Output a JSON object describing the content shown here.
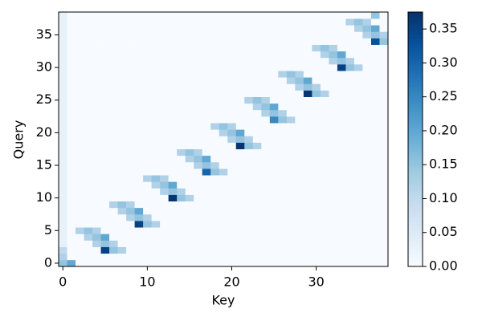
{
  "chart_data": {
    "type": "heatmap",
    "x_label": "Key",
    "y_label": "Query",
    "cmap": "Blues",
    "xlim": [
      -0.5,
      38.5
    ],
    "ylim": [
      -0.5,
      38.5
    ],
    "xticks": [
      0,
      10,
      20,
      30
    ],
    "yticks": [
      0,
      5,
      10,
      15,
      20,
      25,
      30,
      35
    ],
    "clim": [
      0,
      0.375
    ],
    "cticks": [
      {
        "value": 0,
        "label": "0.00"
      },
      {
        "value": 0.05,
        "label": "0.05"
      },
      {
        "value": 0.1,
        "label": "0.10"
      },
      {
        "value": 0.15,
        "label": "0.15"
      },
      {
        "value": 0.2,
        "label": "0.20"
      },
      {
        "value": 0.25,
        "label": "0.25"
      },
      {
        "value": 0.3,
        "label": "0.30"
      },
      {
        "value": 0.35,
        "label": "0.35"
      }
    ],
    "z": [
      [
        0.15,
        0.2,
        0,
        0,
        0,
        0,
        0,
        0,
        0,
        0,
        0,
        0,
        0,
        0,
        0,
        0,
        0,
        0,
        0,
        0,
        0,
        0,
        0,
        0,
        0,
        0,
        0,
        0,
        0,
        0,
        0,
        0,
        0,
        0,
        0,
        0,
        0,
        0,
        0
      ],
      [
        0.12,
        0,
        0,
        0,
        0,
        0,
        0,
        0,
        0,
        0,
        0,
        0,
        0,
        0,
        0,
        0,
        0,
        0,
        0,
        0,
        0,
        0,
        0,
        0,
        0,
        0,
        0,
        0,
        0,
        0,
        0,
        0,
        0,
        0,
        0,
        0,
        0,
        0,
        0
      ],
      [
        0.1,
        0,
        0,
        0,
        0,
        0.35,
        0.15,
        0.12,
        0,
        0,
        0,
        0,
        0,
        0,
        0,
        0,
        0,
        0,
        0,
        0,
        0,
        0,
        0,
        0,
        0,
        0,
        0,
        0,
        0,
        0,
        0,
        0,
        0,
        0,
        0,
        0,
        0,
        0,
        0
      ],
      [
        0.03,
        0,
        0,
        0,
        0.12,
        0.15,
        0.12,
        0,
        0,
        0,
        0,
        0,
        0,
        0,
        0,
        0,
        0,
        0,
        0,
        0,
        0,
        0,
        0,
        0,
        0,
        0,
        0,
        0,
        0,
        0,
        0,
        0,
        0,
        0,
        0,
        0,
        0,
        0,
        0
      ],
      [
        0.03,
        0,
        0,
        0.12,
        0.15,
        0.2,
        0,
        0,
        0,
        0,
        0,
        0,
        0,
        0,
        0,
        0,
        0,
        0,
        0,
        0,
        0,
        0,
        0,
        0,
        0,
        0,
        0,
        0,
        0,
        0,
        0,
        0,
        0,
        0,
        0,
        0,
        0,
        0,
        0
      ],
      [
        0.03,
        0,
        0.12,
        0.15,
        0.12,
        0,
        0,
        0,
        0,
        0,
        0,
        0,
        0,
        0,
        0,
        0,
        0,
        0,
        0,
        0,
        0,
        0,
        0,
        0,
        0,
        0,
        0,
        0,
        0,
        0,
        0,
        0,
        0,
        0,
        0,
        0,
        0,
        0,
        0
      ],
      [
        0.03,
        0,
        0,
        0,
        0,
        0,
        0,
        0,
        0,
        0.35,
        0.15,
        0.12,
        0,
        0,
        0,
        0,
        0,
        0,
        0,
        0,
        0,
        0,
        0,
        0,
        0,
        0,
        0,
        0,
        0,
        0,
        0,
        0,
        0,
        0,
        0,
        0,
        0,
        0,
        0
      ],
      [
        0.03,
        0,
        0,
        0,
        0,
        0,
        0,
        0,
        0.12,
        0.15,
        0.12,
        0,
        0,
        0,
        0,
        0,
        0,
        0,
        0,
        0,
        0,
        0,
        0,
        0,
        0,
        0,
        0,
        0,
        0,
        0,
        0,
        0,
        0,
        0,
        0,
        0,
        0,
        0,
        0
      ],
      [
        0.03,
        0,
        0,
        0,
        0,
        0,
        0,
        0.12,
        0.15,
        0.2,
        0,
        0,
        0,
        0,
        0,
        0,
        0,
        0,
        0,
        0,
        0,
        0,
        0,
        0,
        0,
        0,
        0,
        0,
        0,
        0,
        0,
        0,
        0,
        0,
        0,
        0,
        0,
        0,
        0
      ],
      [
        0.03,
        0,
        0,
        0,
        0,
        0,
        0.12,
        0.15,
        0.12,
        0,
        0,
        0,
        0,
        0,
        0,
        0,
        0,
        0,
        0,
        0,
        0,
        0,
        0,
        0,
        0,
        0,
        0,
        0,
        0,
        0,
        0,
        0,
        0,
        0,
        0,
        0,
        0,
        0,
        0
      ],
      [
        0.03,
        0,
        0,
        0,
        0,
        0,
        0,
        0,
        0,
        0,
        0,
        0,
        0,
        0.37,
        0.15,
        0.12,
        0,
        0,
        0,
        0,
        0,
        0,
        0,
        0,
        0,
        0,
        0,
        0,
        0,
        0,
        0,
        0,
        0,
        0,
        0,
        0,
        0,
        0,
        0
      ],
      [
        0.03,
        0,
        0,
        0,
        0,
        0,
        0,
        0,
        0,
        0,
        0,
        0,
        0.12,
        0.15,
        0.12,
        0,
        0,
        0,
        0,
        0,
        0,
        0,
        0,
        0,
        0,
        0,
        0,
        0,
        0,
        0,
        0,
        0,
        0,
        0,
        0,
        0,
        0,
        0,
        0
      ],
      [
        0.03,
        0,
        0,
        0,
        0,
        0,
        0,
        0,
        0,
        0,
        0,
        0.12,
        0.15,
        0.2,
        0,
        0,
        0,
        0,
        0,
        0,
        0,
        0,
        0,
        0,
        0,
        0,
        0,
        0,
        0,
        0,
        0,
        0,
        0,
        0,
        0,
        0,
        0,
        0,
        0
      ],
      [
        0.03,
        0,
        0,
        0,
        0,
        0,
        0,
        0,
        0,
        0,
        0.12,
        0.15,
        0.12,
        0,
        0,
        0,
        0,
        0,
        0,
        0,
        0,
        0,
        0,
        0,
        0,
        0,
        0,
        0,
        0,
        0,
        0,
        0,
        0,
        0,
        0,
        0,
        0,
        0,
        0
      ],
      [
        0.03,
        0,
        0,
        0,
        0,
        0,
        0,
        0,
        0,
        0,
        0,
        0,
        0,
        0,
        0,
        0,
        0,
        0.3,
        0.15,
        0.12,
        0,
        0,
        0,
        0,
        0,
        0,
        0,
        0,
        0,
        0,
        0,
        0,
        0,
        0,
        0,
        0,
        0,
        0,
        0
      ],
      [
        0.03,
        0,
        0,
        0,
        0,
        0,
        0,
        0,
        0,
        0,
        0,
        0,
        0,
        0,
        0,
        0,
        0.12,
        0.15,
        0.12,
        0,
        0,
        0,
        0,
        0,
        0,
        0,
        0,
        0,
        0,
        0,
        0,
        0,
        0,
        0,
        0,
        0,
        0,
        0,
        0
      ],
      [
        0.03,
        0,
        0,
        0,
        0,
        0,
        0,
        0,
        0,
        0,
        0,
        0,
        0,
        0,
        0,
        0.12,
        0.15,
        0.2,
        0,
        0,
        0,
        0,
        0,
        0,
        0,
        0,
        0,
        0,
        0,
        0,
        0,
        0,
        0,
        0,
        0,
        0,
        0,
        0,
        0
      ],
      [
        0.03,
        0,
        0,
        0,
        0,
        0,
        0,
        0,
        0,
        0,
        0,
        0,
        0,
        0,
        0.12,
        0.15,
        0.12,
        0,
        0,
        0,
        0,
        0,
        0,
        0,
        0,
        0,
        0,
        0,
        0,
        0,
        0,
        0,
        0,
        0,
        0,
        0,
        0,
        0,
        0
      ],
      [
        0.03,
        0,
        0,
        0,
        0,
        0,
        0,
        0,
        0,
        0,
        0,
        0,
        0,
        0,
        0,
        0,
        0,
        0,
        0,
        0,
        0,
        0.37,
        0.15,
        0.12,
        0,
        0,
        0,
        0,
        0,
        0,
        0,
        0,
        0,
        0,
        0,
        0,
        0,
        0,
        0
      ],
      [
        0.03,
        0,
        0,
        0,
        0,
        0,
        0,
        0,
        0,
        0,
        0,
        0,
        0,
        0,
        0,
        0,
        0,
        0,
        0,
        0,
        0.12,
        0.15,
        0.12,
        0,
        0,
        0,
        0,
        0,
        0,
        0,
        0,
        0,
        0,
        0,
        0,
        0,
        0,
        0,
        0
      ],
      [
        0.03,
        0,
        0,
        0,
        0,
        0,
        0,
        0,
        0,
        0,
        0,
        0,
        0,
        0,
        0,
        0,
        0,
        0,
        0,
        0.12,
        0.15,
        0.2,
        0,
        0,
        0,
        0,
        0,
        0,
        0,
        0,
        0,
        0,
        0,
        0,
        0,
        0,
        0,
        0,
        0
      ],
      [
        0.03,
        0,
        0,
        0,
        0,
        0,
        0,
        0,
        0,
        0,
        0,
        0,
        0,
        0,
        0,
        0,
        0,
        0,
        0.12,
        0.15,
        0.12,
        0,
        0,
        0,
        0,
        0,
        0,
        0,
        0,
        0,
        0,
        0,
        0,
        0,
        0,
        0,
        0,
        0,
        0
      ],
      [
        0.03,
        0,
        0,
        0,
        0,
        0,
        0,
        0,
        0,
        0,
        0,
        0,
        0,
        0,
        0,
        0,
        0,
        0,
        0,
        0,
        0,
        0,
        0,
        0,
        0,
        0.25,
        0.15,
        0.12,
        0,
        0,
        0,
        0,
        0,
        0,
        0,
        0,
        0,
        0,
        0
      ],
      [
        0.03,
        0,
        0,
        0,
        0,
        0,
        0,
        0,
        0,
        0,
        0,
        0,
        0,
        0,
        0,
        0,
        0,
        0,
        0,
        0,
        0,
        0,
        0,
        0,
        0.12,
        0.15,
        0.12,
        0,
        0,
        0,
        0,
        0,
        0,
        0,
        0,
        0,
        0,
        0,
        0
      ],
      [
        0.03,
        0,
        0,
        0,
        0,
        0,
        0,
        0,
        0,
        0,
        0,
        0,
        0,
        0,
        0,
        0,
        0,
        0,
        0,
        0,
        0,
        0,
        0,
        0.12,
        0.15,
        0.2,
        0,
        0,
        0,
        0,
        0,
        0,
        0,
        0,
        0,
        0,
        0,
        0,
        0
      ],
      [
        0.03,
        0,
        0,
        0,
        0,
        0,
        0,
        0,
        0,
        0,
        0,
        0,
        0,
        0,
        0,
        0,
        0,
        0,
        0,
        0,
        0,
        0,
        0.12,
        0.15,
        0.12,
        0,
        0,
        0,
        0,
        0,
        0,
        0,
        0,
        0,
        0,
        0,
        0,
        0,
        0
      ],
      [
        0.03,
        0,
        0,
        0,
        0,
        0,
        0,
        0,
        0,
        0,
        0,
        0,
        0,
        0,
        0,
        0,
        0,
        0,
        0,
        0,
        0,
        0,
        0,
        0,
        0,
        0,
        0,
        0,
        0,
        0.37,
        0.15,
        0.12,
        0,
        0,
        0,
        0,
        0,
        0,
        0
      ],
      [
        0.03,
        0,
        0,
        0,
        0,
        0,
        0,
        0,
        0,
        0,
        0,
        0,
        0,
        0,
        0,
        0,
        0,
        0,
        0,
        0,
        0,
        0,
        0,
        0,
        0,
        0,
        0,
        0,
        0.12,
        0.15,
        0.12,
        0,
        0,
        0,
        0,
        0,
        0,
        0,
        0
      ],
      [
        0.03,
        0,
        0,
        0,
        0,
        0,
        0,
        0,
        0,
        0,
        0,
        0,
        0,
        0,
        0,
        0,
        0,
        0,
        0,
        0,
        0,
        0,
        0,
        0,
        0,
        0,
        0,
        0.12,
        0.15,
        0.2,
        0,
        0,
        0,
        0,
        0,
        0,
        0,
        0,
        0
      ],
      [
        0.03,
        0,
        0,
        0,
        0,
        0,
        0,
        0,
        0,
        0,
        0,
        0,
        0,
        0,
        0,
        0,
        0,
        0,
        0,
        0,
        0,
        0,
        0,
        0,
        0,
        0,
        0.12,
        0.15,
        0.12,
        0,
        0,
        0,
        0,
        0,
        0,
        0,
        0,
        0,
        0
      ],
      [
        0.03,
        0,
        0,
        0,
        0,
        0,
        0,
        0,
        0,
        0,
        0,
        0,
        0,
        0,
        0,
        0,
        0,
        0,
        0,
        0,
        0,
        0,
        0,
        0,
        0,
        0,
        0,
        0,
        0,
        0,
        0,
        0,
        0,
        0.35,
        0.15,
        0.12,
        0,
        0,
        0
      ],
      [
        0.03,
        0,
        0,
        0,
        0,
        0,
        0,
        0,
        0,
        0,
        0,
        0,
        0,
        0,
        0,
        0,
        0,
        0,
        0,
        0,
        0,
        0,
        0,
        0,
        0,
        0,
        0,
        0,
        0,
        0,
        0,
        0,
        0.12,
        0.15,
        0.12,
        0,
        0,
        0,
        0
      ],
      [
        0.03,
        0,
        0,
        0,
        0,
        0,
        0,
        0,
        0,
        0,
        0,
        0,
        0,
        0,
        0,
        0,
        0,
        0,
        0,
        0,
        0,
        0,
        0,
        0,
        0,
        0,
        0,
        0,
        0,
        0,
        0,
        0.12,
        0.15,
        0.2,
        0,
        0,
        0,
        0,
        0
      ],
      [
        0.03,
        0,
        0,
        0,
        0,
        0,
        0,
        0,
        0,
        0,
        0,
        0,
        0,
        0,
        0,
        0,
        0,
        0,
        0,
        0,
        0,
        0,
        0,
        0,
        0,
        0,
        0,
        0,
        0,
        0,
        0.12,
        0.15,
        0.12,
        0,
        0,
        0,
        0,
        0,
        0
      ],
      [
        0.03,
        0,
        0,
        0,
        0,
        0,
        0,
        0,
        0,
        0,
        0,
        0,
        0,
        0,
        0,
        0,
        0,
        0,
        0,
        0,
        0,
        0,
        0,
        0,
        0,
        0,
        0,
        0,
        0,
        0,
        0,
        0,
        0,
        0,
        0,
        0,
        0,
        0.33,
        0.15
      ],
      [
        0.03,
        0,
        0,
        0,
        0,
        0,
        0,
        0,
        0,
        0,
        0,
        0,
        0,
        0,
        0,
        0,
        0,
        0,
        0,
        0,
        0,
        0,
        0,
        0,
        0,
        0,
        0,
        0,
        0,
        0,
        0,
        0,
        0,
        0,
        0,
        0,
        0.12,
        0.15,
        0.12
      ],
      [
        0.03,
        0,
        0,
        0,
        0,
        0,
        0,
        0,
        0,
        0,
        0,
        0,
        0,
        0,
        0,
        0,
        0,
        0,
        0,
        0,
        0,
        0,
        0,
        0,
        0,
        0,
        0,
        0,
        0,
        0,
        0,
        0,
        0,
        0,
        0,
        0.12,
        0.15,
        0.2,
        0
      ],
      [
        0.03,
        0,
        0,
        0,
        0,
        0,
        0,
        0,
        0,
        0,
        0,
        0,
        0,
        0,
        0,
        0,
        0,
        0,
        0,
        0,
        0,
        0,
        0,
        0,
        0,
        0,
        0,
        0,
        0,
        0,
        0,
        0,
        0,
        0,
        0.12,
        0.15,
        0.12,
        0,
        0
      ],
      [
        0.03,
        0,
        0,
        0,
        0,
        0,
        0,
        0,
        0,
        0,
        0,
        0,
        0,
        0,
        0,
        0,
        0,
        0,
        0,
        0,
        0,
        0,
        0,
        0,
        0,
        0,
        0,
        0,
        0,
        0,
        0,
        0,
        0,
        0,
        0,
        0,
        0,
        0.15,
        0
      ]
    ]
  }
}
